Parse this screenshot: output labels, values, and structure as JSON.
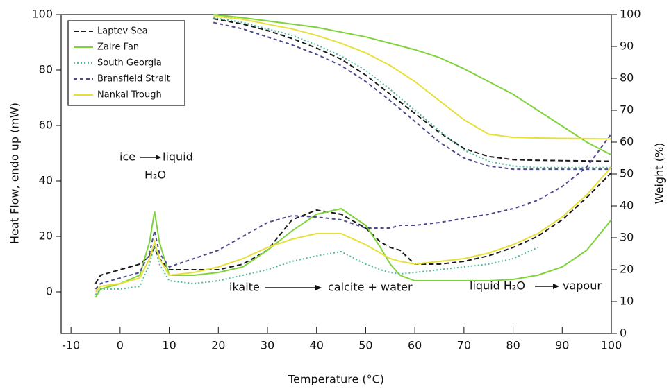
{
  "chart_data": {
    "type": "line",
    "xlabel": "Temperature (°C)",
    "ylabel": "Heat Flow, endo up (mW)",
    "y2label": "Weight (%)",
    "xlim": [
      -12,
      100
    ],
    "xticks": [
      -10,
      0,
      10,
      20,
      30,
      40,
      50,
      60,
      70,
      80,
      90,
      100
    ],
    "ylim": [
      -15,
      100
    ],
    "yticks": [
      0,
      20,
      40,
      60,
      80,
      100
    ],
    "y2lim": [
      0,
      100
    ],
    "y2ticks": [
      0,
      10,
      20,
      30,
      40,
      50,
      60,
      70,
      80,
      90,
      100
    ],
    "legend": "upper left",
    "x": [
      -5,
      -4,
      0,
      4,
      6,
      7,
      8,
      10,
      15,
      20,
      25,
      30,
      35,
      40,
      45,
      50,
      53,
      55,
      57,
      60,
      65,
      70,
      75,
      80,
      85,
      90,
      95,
      100
    ],
    "weight_x": [
      19,
      25,
      30,
      35,
      40,
      45,
      50,
      55,
      60,
      65,
      70,
      75,
      80,
      85,
      90,
      95,
      100
    ],
    "series": [
      {
        "name": "Laptev Sea",
        "color": "#1a1a1a",
        "dash": "7,4",
        "values": [
          3,
          6,
          8,
          10,
          13,
          16,
          12,
          8,
          8,
          8,
          10,
          15,
          26,
          29.5,
          28,
          23,
          18,
          16,
          15,
          10,
          10,
          11,
          13,
          16,
          20,
          26,
          34,
          43
        ],
        "weight": [
          98.7,
          97,
          95,
          92.5,
          89.5,
          86,
          81,
          75,
          69,
          63,
          58,
          55.5,
          54.5,
          54.3,
          54.2,
          54.1,
          54
        ]
      },
      {
        "name": "Zaire Fan",
        "color": "#7fd33a",
        "dash": "none",
        "values": [
          -2,
          1,
          3,
          6,
          18,
          29,
          18,
          6,
          6,
          7,
          9,
          15,
          22,
          28,
          30,
          24,
          16,
          10,
          6,
          4,
          4,
          4,
          4,
          4.5,
          6,
          9,
          15,
          26
        ],
        "weight": [
          100,
          99,
          98,
          97,
          96,
          94.5,
          93,
          91,
          89,
          86.5,
          83,
          79,
          75,
          70,
          65,
          60,
          56
        ]
      },
      {
        "name": "South Georgia",
        "color": "#4fb89a",
        "dash": "2,3",
        "values": [
          -1,
          1,
          1,
          2,
          10,
          17,
          10,
          4,
          3,
          4,
          6,
          8,
          11,
          13,
          14.5,
          10,
          8,
          7,
          6.5,
          7,
          8,
          9,
          10,
          12,
          16,
          null,
          null,
          null
        ],
        "weight": [
          99,
          97.5,
          95.5,
          93.5,
          90.5,
          87,
          82.5,
          76.5,
          70,
          63.5,
          57.5,
          54,
          52.5,
          52,
          52,
          52,
          52
        ]
      },
      {
        "name": "Bransfield Strait",
        "color": "#4a4a8c",
        "dash": "5,4",
        "values": [
          1,
          3,
          5,
          7,
          14,
          22,
          14,
          9,
          12,
          15,
          20,
          25,
          27.5,
          27,
          26,
          23,
          23,
          23,
          24,
          24,
          25,
          26.5,
          28,
          30,
          33,
          38,
          45,
          57
        ],
        "weight": [
          97.5,
          95.5,
          93,
          90.5,
          87.5,
          84,
          79,
          73,
          66.5,
          60,
          55,
          52.5,
          51.5,
          51.5,
          51.5,
          51.5,
          51.5
        ]
      },
      {
        "name": "Nankai Trough",
        "color": "#e8e03a",
        "dash": "none",
        "values": [
          0,
          2,
          3,
          5,
          12,
          18,
          12,
          6,
          7,
          9,
          12,
          16,
          19,
          21,
          21,
          17,
          14,
          12,
          11,
          10,
          11,
          12,
          14,
          17,
          21,
          27,
          35,
          45
        ],
        "weight": [
          99.5,
          98.5,
          97,
          95.5,
          93.5,
          91,
          88,
          84,
          79,
          73,
          67,
          62.5,
          61.5,
          61.3,
          61.2,
          61.1,
          61
        ]
      }
    ],
    "annotations": {
      "ice": "ice",
      "liquid": "liquid",
      "h2o": "H₂O",
      "ikaite": "ikaite",
      "calcite": "calcite + water",
      "liquid_h2o": "liquid H₂O",
      "vapour": "vapour"
    }
  }
}
